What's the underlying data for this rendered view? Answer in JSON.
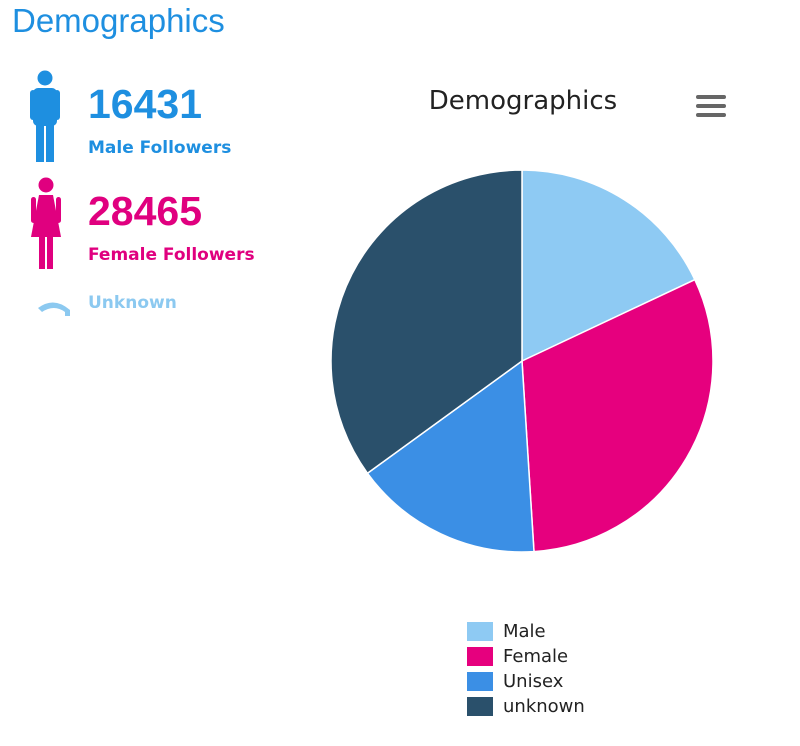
{
  "page": {
    "heading": "Demographics"
  },
  "stats": {
    "male": {
      "count": "16431",
      "label": "Male Followers",
      "icon": "male-person-icon",
      "color": "#1e8fe0"
    },
    "female": {
      "count": "28465",
      "label": "Female Followers",
      "icon": "female-person-icon",
      "color": "#e0007f"
    },
    "unknown": {
      "label": "Unknown",
      "icon": "unknown-person-icon",
      "color": "#8cc9f0"
    }
  },
  "chart_menu": {
    "icon": "hamburger-menu-icon"
  },
  "chart_data": {
    "type": "pie",
    "title": "Demographics",
    "legend_position": "bottom-center",
    "slices": [
      {
        "name": "Male",
        "value": 18,
        "color": "#8ecaf3"
      },
      {
        "name": "Female",
        "value": 31,
        "color": "#e6007e"
      },
      {
        "name": "Unisex",
        "value": 16,
        "color": "#3b8fe5"
      },
      {
        "name": "unknown",
        "value": 35,
        "color": "#2a506b"
      }
    ]
  }
}
